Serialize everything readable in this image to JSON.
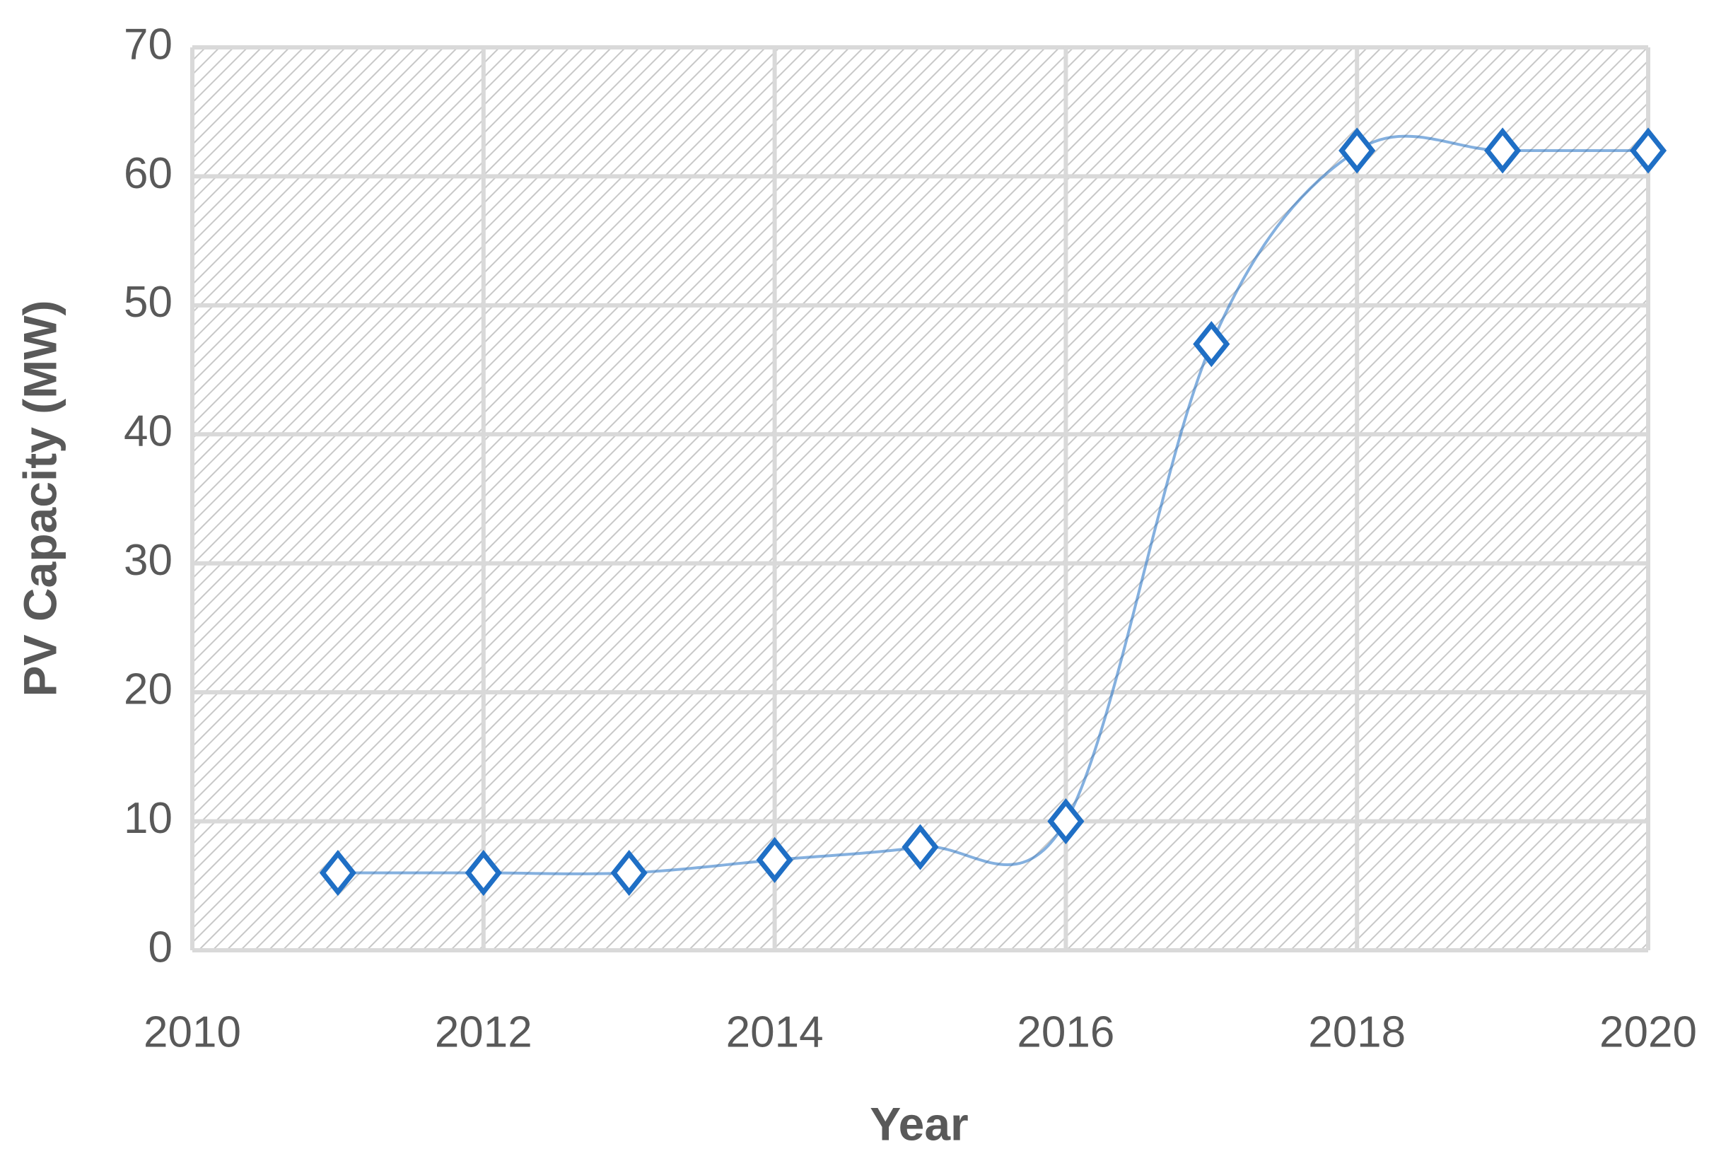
{
  "chart_data": {
    "type": "scatter",
    "x_label": "Year",
    "y_label": "PV Capacity (MW)",
    "x": [
      2011,
      2012,
      2013,
      2014,
      2015,
      2016,
      2017,
      2018,
      2019,
      2020
    ],
    "series": [
      {
        "name": "PV Capacity",
        "color": "#1f6fc5",
        "values": [
          6,
          6,
          6,
          7,
          8,
          10,
          47,
          62,
          62,
          62
        ]
      }
    ],
    "xlim": [
      2010,
      2020
    ],
    "xticks": [
      2010,
      2012,
      2014,
      2016,
      2018,
      2020
    ],
    "ylim": [
      0,
      70
    ],
    "yticks": [
      0,
      10,
      20,
      30,
      40,
      50,
      60,
      70
    ],
    "grid": true,
    "smooth": true,
    "marker": "diamond"
  }
}
